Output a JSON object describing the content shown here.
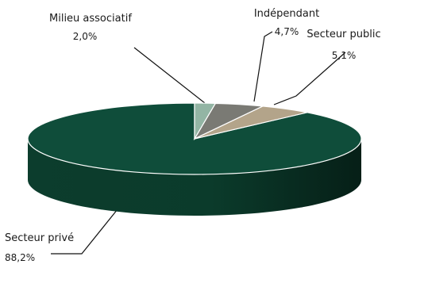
{
  "chart_data": {
    "type": "pie",
    "style": "3d",
    "title": "",
    "slices": [
      {
        "name": "Secteur privé",
        "value": "88,2%",
        "pct": 88.2,
        "color": "#0f4d3a"
      },
      {
        "name": "Secteur public",
        "value": "5,1%",
        "pct": 5.1,
        "color": "#b3a48a"
      },
      {
        "name": "Indépendant",
        "value": "4,7%",
        "pct": 4.7,
        "color": "#7a7a74"
      },
      {
        "name": "Milieu associatif",
        "value": "2,0%",
        "pct": 2.0,
        "color": "#93b5a4"
      }
    ],
    "legend": "none"
  }
}
